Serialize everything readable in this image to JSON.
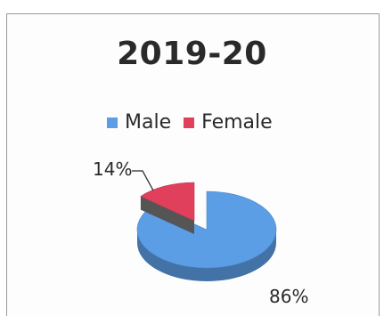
{
  "chart_data": {
    "type": "pie",
    "title": "2019-20",
    "legend_position": "top",
    "categories": [
      "Male",
      "Female"
    ],
    "values": [
      86,
      14
    ],
    "data_labels": [
      "86%",
      "14%"
    ],
    "colors": [
      "#5b9ee6",
      "#e0405c"
    ],
    "style": "3d-exploded"
  }
}
